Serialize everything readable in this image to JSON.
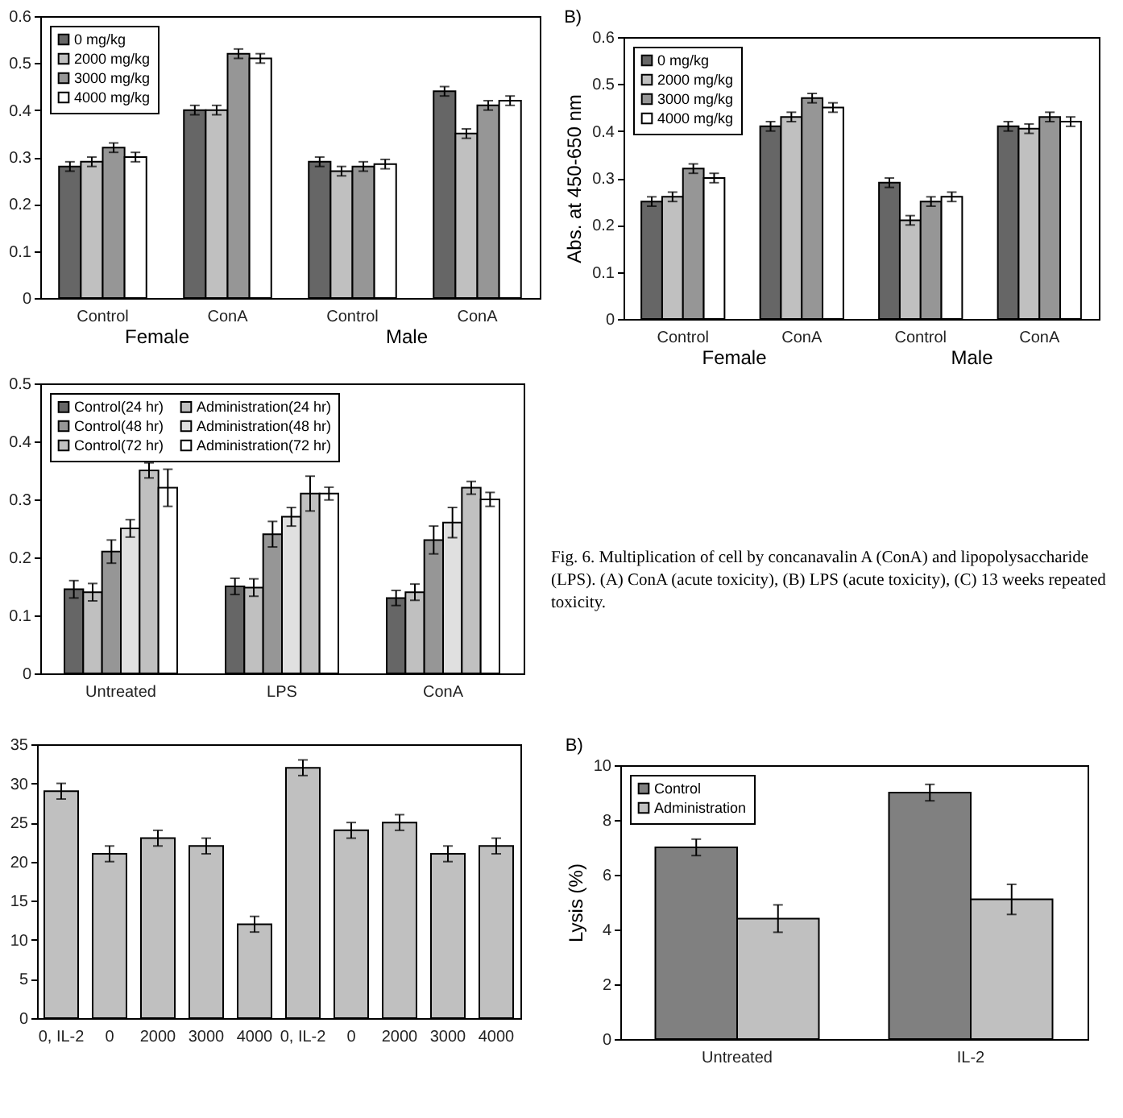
{
  "chart_data": [
    {
      "type": "bar",
      "categories": [
        "Control",
        "ConA",
        "Control",
        "ConA"
      ],
      "ylim": [
        0,
        0.6
      ],
      "yticks": [
        0,
        0.1,
        0.2,
        0.3,
        0.4,
        0.5,
        0.6
      ],
      "legend": "top left",
      "annotations": [
        {
          "text": "Female"
        },
        {
          "text": "Male"
        }
      ],
      "series": [
        {
          "name": "0 mg/kg",
          "color": "#666666",
          "values": [
            0.28,
            0.4,
            0.29,
            0.44
          ],
          "errors": [
            0.01,
            0.01,
            0.01,
            0.01
          ]
        },
        {
          "name": "2000 mg/kg",
          "color": "#c0c0c0",
          "values": [
            0.29,
            0.4,
            0.27,
            0.35
          ],
          "errors": [
            0.01,
            0.01,
            0.01,
            0.01
          ]
        },
        {
          "name": "3000 mg/kg",
          "color": "#969696",
          "values": [
            0.32,
            0.52,
            0.28,
            0.41
          ],
          "errors": [
            0.01,
            0.01,
            0.01,
            0.01
          ]
        },
        {
          "name": "4000 mg/kg",
          "color": "#ffffff",
          "values": [
            0.3,
            0.51,
            0.285,
            0.42
          ],
          "errors": [
            0.01,
            0.01,
            0.01,
            0.01
          ]
        }
      ]
    },
    {
      "type": "bar",
      "title": "B)",
      "ylabel": "Abs. at 450-650 nm",
      "categories": [
        "Control",
        "ConA",
        "Control",
        "ConA"
      ],
      "ylim": [
        0,
        0.6
      ],
      "yticks": [
        0,
        0.1,
        0.2,
        0.3,
        0.4,
        0.5,
        0.6
      ],
      "legend": "top left",
      "annotations": [
        {
          "text": "Female"
        },
        {
          "text": "Male"
        }
      ],
      "series": [
        {
          "name": "0 mg/kg",
          "color": "#666666",
          "values": [
            0.25,
            0.41,
            0.29,
            0.41
          ],
          "errors": [
            0.01,
            0.01,
            0.01,
            0.01
          ]
        },
        {
          "name": "2000 mg/kg",
          "color": "#c0c0c0",
          "values": [
            0.26,
            0.43,
            0.21,
            0.405
          ],
          "errors": [
            0.01,
            0.01,
            0.01,
            0.01
          ]
        },
        {
          "name": "3000 mg/kg",
          "color": "#969696",
          "values": [
            0.32,
            0.47,
            0.25,
            0.43
          ],
          "errors": [
            0.01,
            0.01,
            0.01,
            0.01
          ]
        },
        {
          "name": "4000 mg/kg",
          "color": "#ffffff",
          "values": [
            0.3,
            0.45,
            0.26,
            0.42
          ],
          "errors": [
            0.01,
            0.01,
            0.01,
            0.01
          ]
        }
      ]
    },
    {
      "type": "bar",
      "categories": [
        "Untreated",
        "LPS",
        "ConA"
      ],
      "ylim": [
        0,
        0.5
      ],
      "yticks": [
        0,
        0.1,
        0.2,
        0.3,
        0.4,
        0.5
      ],
      "legend": "top left",
      "annotations": [
        "Fig. 6. Multiplication of cell by concanavalin A (ConA) and lipopolysaccharide (LPS). (A) ConA (acute toxicity), (B) LPS (acute toxicity), (C) 13 weeks repeated toxicity."
      ],
      "series": [
        {
          "name": "Control(24 hr)",
          "color": "#666666",
          "values": [
            0.145,
            0.15,
            0.13
          ],
          "errors": [
            0.015,
            0.014,
            0.013
          ]
        },
        {
          "name": "Administration(24 hr)",
          "color": "#c0c0c0",
          "values": [
            0.14,
            0.148,
            0.14
          ],
          "errors": [
            0.015,
            0.015,
            0.014
          ]
        },
        {
          "name": "Control(48 hr)",
          "color": "#969696",
          "values": [
            0.21,
            0.24,
            0.23
          ],
          "errors": [
            0.02,
            0.022,
            0.024
          ]
        },
        {
          "name": "Administration(48 hr)",
          "color": "#e0e0e0",
          "values": [
            0.25,
            0.27,
            0.26
          ],
          "errors": [
            0.015,
            0.016,
            0.026
          ]
        },
        {
          "name": "Control(72 hr)",
          "color": "#c0c0c0",
          "values": [
            0.35,
            0.31,
            0.32
          ],
          "errors": [
            0.013,
            0.03,
            0.011
          ]
        },
        {
          "name": "Administration(72 hr)",
          "color": "#ffffff",
          "values": [
            0.32,
            0.31,
            0.3
          ],
          "errors": [
            0.032,
            0.011,
            0.012
          ]
        }
      ]
    },
    {
      "type": "bar",
      "categories": [
        "0, IL-2",
        "0",
        "2000",
        "3000",
        "4000",
        "0, IL-2",
        "0",
        "2000",
        "3000",
        "4000"
      ],
      "ylim": [
        0,
        35
      ],
      "yticks": [
        0,
        5,
        10,
        15,
        20,
        25,
        30,
        35
      ],
      "color": "#c0c0c0",
      "values": [
        29,
        21,
        23,
        22,
        12,
        32,
        24,
        25,
        21,
        22
      ],
      "errors": [
        1,
        1,
        1,
        1,
        1,
        1,
        1,
        1,
        1,
        1
      ]
    },
    {
      "type": "bar",
      "title": "B)",
      "ylabel": "Lysis (%)",
      "categories": [
        "Untreated",
        "IL-2"
      ],
      "ylim": [
        0,
        10
      ],
      "yticks": [
        0,
        2,
        4,
        6,
        8,
        10
      ],
      "legend": "top left",
      "series": [
        {
          "name": "Control",
          "color": "#808080",
          "values": [
            7,
            9
          ],
          "errors": [
            0.3,
            0.3
          ]
        },
        {
          "name": "Administration",
          "color": "#c0c0c0",
          "values": [
            4.4,
            5.1
          ],
          "errors": [
            0.5,
            0.55
          ]
        }
      ]
    }
  ]
}
